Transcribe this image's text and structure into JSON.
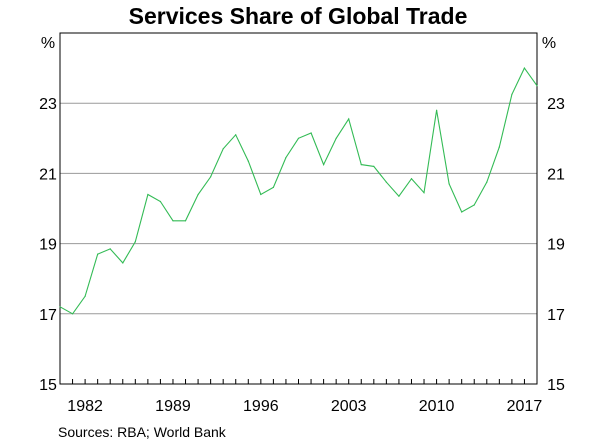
{
  "chart_data": {
    "type": "line",
    "title": "Services Share of Global Trade",
    "xlabel": "",
    "ylabel": "",
    "unit_left": "%",
    "unit_right": "%",
    "source": "Sources:   RBA; World Bank",
    "xlim": [
      1980,
      2018
    ],
    "ylim": [
      15,
      25
    ],
    "yticks": [
      15,
      17,
      19,
      21,
      23
    ],
    "xticks": [
      1982,
      1989,
      1996,
      2003,
      2010,
      2017
    ],
    "grid": true,
    "legend": "none",
    "line_color": "#33bb55",
    "series": [
      {
        "x": [
          1980,
          1981,
          1982,
          1983,
          1984,
          1985,
          1986,
          1987,
          1988,
          1989,
          1990,
          1991,
          1992,
          1993,
          1994,
          1995,
          1996,
          1997,
          1998,
          1999,
          2000,
          2001,
          2002,
          2003,
          2004,
          2005,
          2006,
          2007,
          2008,
          2009,
          2010,
          2011,
          2012,
          2013,
          2014,
          2015,
          2016,
          2017,
          2018
        ],
        "values": [
          17.2,
          17.0,
          17.5,
          18.7,
          18.85,
          18.45,
          19.05,
          20.4,
          20.2,
          19.65,
          19.65,
          20.4,
          20.9,
          21.7,
          22.1,
          21.35,
          20.4,
          20.6,
          21.45,
          22.0,
          22.15,
          21.25,
          22.0,
          22.55,
          21.25,
          21.2,
          20.75,
          20.35,
          20.85,
          20.45,
          22.8,
          20.7,
          19.9,
          20.1,
          20.75,
          21.75,
          23.25,
          24.0,
          23.5
        ]
      }
    ]
  }
}
